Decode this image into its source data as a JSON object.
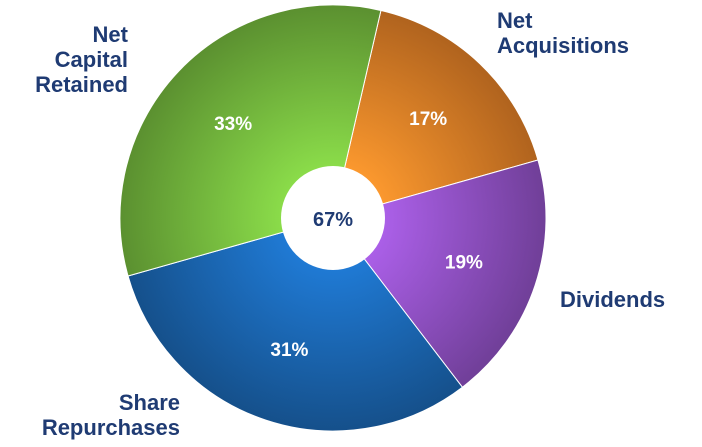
{
  "chart_data": {
    "type": "pie",
    "style": "donut",
    "center_label": "67%",
    "slices": [
      {
        "label": "Net Acquisitions",
        "value": 17,
        "value_label": "17%",
        "color": "#f58a2a"
      },
      {
        "label": "Dividends",
        "value": 19,
        "value_label": "19%",
        "color": "#9b57d3"
      },
      {
        "label": "Share Repurchases",
        "value": 31,
        "value_label": "31%",
        "color": "#1d6fc1"
      },
      {
        "label": "Net Capital Retained",
        "value": 33,
        "value_label": "33%",
        "color": "#7ec843"
      }
    ]
  },
  "labels": {
    "retained": "Net\nCapital\nRetained",
    "acquisitions": "Net\nAcquisitions",
    "dividends": "Dividends",
    "repurchases": "Share\nRepurchases"
  },
  "colors": {
    "label_text": "#1f3b73",
    "value_text": "#ffffff",
    "center_text": "#1f3b73"
  }
}
